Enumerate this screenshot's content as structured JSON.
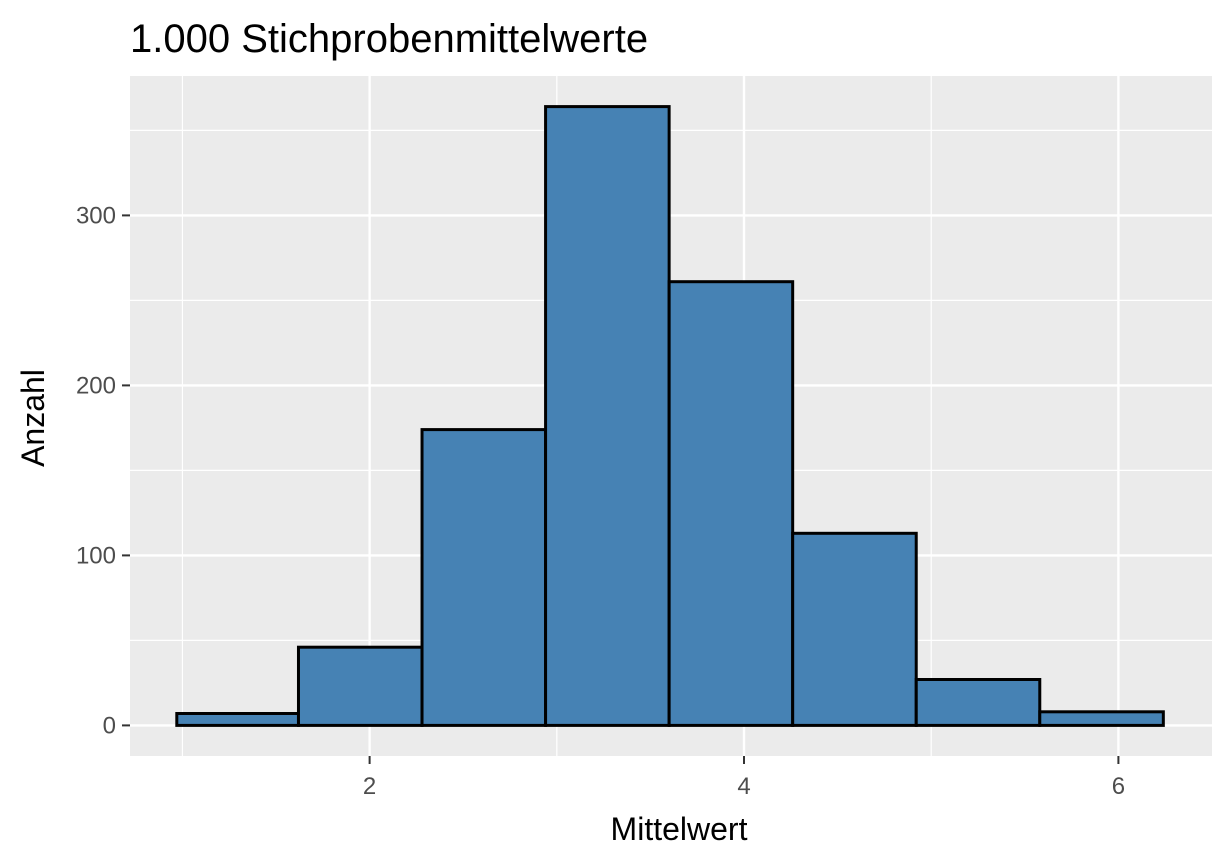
{
  "chart_data": {
    "type": "bar",
    "title": "1.000 Stichprobenmittelwerte",
    "xlabel": "Mittelwert",
    "ylabel": "Anzahl",
    "bins": [
      {
        "x_start": 0.97,
        "x_end": 1.62,
        "count": 7
      },
      {
        "x_start": 1.62,
        "x_end": 2.28,
        "count": 46
      },
      {
        "x_start": 2.28,
        "x_end": 2.94,
        "count": 174
      },
      {
        "x_start": 2.94,
        "x_end": 3.6,
        "count": 364
      },
      {
        "x_start": 3.6,
        "x_end": 4.26,
        "count": 261
      },
      {
        "x_start": 4.26,
        "x_end": 4.92,
        "count": 113
      },
      {
        "x_start": 4.92,
        "x_end": 5.58,
        "count": 27
      },
      {
        "x_start": 5.58,
        "x_end": 6.24,
        "count": 8
      }
    ],
    "xlim": [
      0.72,
      6.5
    ],
    "ylim": [
      -18,
      382
    ],
    "x_ticks": [
      2,
      4,
      6
    ],
    "x_tick_labels": [
      "2",
      "4",
      "6"
    ],
    "y_ticks": [
      0,
      100,
      200,
      300
    ],
    "y_tick_labels": [
      "0",
      "100",
      "200",
      "300"
    ],
    "grid": true,
    "colors": {
      "bar_fill": "#4682b4",
      "bar_stroke": "#000000",
      "panel_background": "#ebebeb",
      "grid_line": "#ffffff",
      "tick_text": "#4d4d4d"
    }
  }
}
